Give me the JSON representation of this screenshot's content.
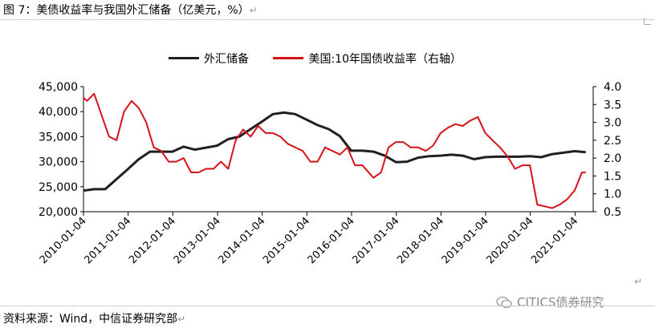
{
  "caption": "图 7：美债收益率与我国外汇储备（亿美元，%）",
  "caption_mark": "↵",
  "source": "资料来源：Wind，中信证券研究部",
  "source_mark": "↵",
  "watermark": "CITICS债券研究",
  "para_mark": "↵",
  "colors": {
    "reserve": "#231f20",
    "yield": "#d7121a"
  },
  "chart_data": {
    "type": "line",
    "x_tick_labels": [
      "2010-01-04",
      "2011-01-04",
      "2012-01-04",
      "2013-01-04",
      "2014-01-04",
      "2015-01-04",
      "2016-01-04",
      "2017-01-04",
      "2018-01-04",
      "2019-01-04",
      "2020-01-04",
      "2021-01-04"
    ],
    "ylim_left": [
      20000,
      45000
    ],
    "yticks_left": [
      "20,000",
      "25,000",
      "30,000",
      "35,000",
      "40,000",
      "45,000"
    ],
    "ylim_right": [
      0.5,
      4.0
    ],
    "yticks_right": [
      "0.5",
      "1.0",
      "1.5",
      "2.0",
      "2.5",
      "3.0",
      "3.5",
      "4.0"
    ],
    "grid": false,
    "legend_position": "top",
    "series": [
      {
        "name": "外汇储备",
        "axis": "left",
        "x": [
          "2010-01",
          "2010-04",
          "2010-07",
          "2010-10",
          "2011-01",
          "2011-04",
          "2011-07",
          "2011-10",
          "2012-01",
          "2012-04",
          "2012-07",
          "2012-10",
          "2013-01",
          "2013-04",
          "2013-07",
          "2013-10",
          "2014-01",
          "2014-04",
          "2014-07",
          "2014-10",
          "2015-01",
          "2015-04",
          "2015-07",
          "2015-10",
          "2016-01",
          "2016-04",
          "2016-07",
          "2016-10",
          "2017-01",
          "2017-04",
          "2017-07",
          "2017-10",
          "2018-01",
          "2018-04",
          "2018-07",
          "2018-10",
          "2019-01",
          "2019-04",
          "2019-07",
          "2019-10",
          "2020-01",
          "2020-04",
          "2020-07",
          "2020-10",
          "2021-01",
          "2021-04"
        ],
        "values": [
          24200,
          24500,
          24500,
          26500,
          28500,
          30500,
          32000,
          32000,
          32000,
          33000,
          32400,
          32800,
          33200,
          34500,
          35000,
          36500,
          38000,
          39500,
          39800,
          39500,
          38400,
          37300,
          36500,
          35100,
          32200,
          32200,
          32000,
          31200,
          29900,
          30000,
          30800,
          31100,
          31200,
          31400,
          31200,
          30500,
          30900,
          31000,
          31000,
          31000,
          31100,
          30900,
          31500,
          31800,
          32100,
          31900
        ]
      },
      {
        "name": "美国:10年国债收益率（右轴）",
        "axis": "right",
        "x": [
          "2010-01",
          "2010-02",
          "2010-04",
          "2010-06",
          "2010-08",
          "2010-10",
          "2010-12",
          "2011-02",
          "2011-04",
          "2011-06",
          "2011-08",
          "2011-10",
          "2011-12",
          "2012-02",
          "2012-04",
          "2012-06",
          "2012-08",
          "2012-10",
          "2012-12",
          "2013-02",
          "2013-04",
          "2013-06",
          "2013-08",
          "2013-10",
          "2013-12",
          "2014-02",
          "2014-04",
          "2014-06",
          "2014-08",
          "2014-10",
          "2014-12",
          "2015-02",
          "2015-04",
          "2015-06",
          "2015-08",
          "2015-10",
          "2015-12",
          "2016-02",
          "2016-04",
          "2016-07",
          "2016-09",
          "2016-11",
          "2017-01",
          "2017-03",
          "2017-05",
          "2017-07",
          "2017-09",
          "2017-11",
          "2018-01",
          "2018-03",
          "2018-05",
          "2018-07",
          "2018-09",
          "2018-11",
          "2019-01",
          "2019-03",
          "2019-05",
          "2019-07",
          "2019-09",
          "2019-11",
          "2020-01",
          "2020-03",
          "2020-05",
          "2020-07",
          "2020-09",
          "2020-11",
          "2021-01",
          "2021-03",
          "2021-04"
        ],
        "values": [
          3.7,
          3.6,
          3.8,
          3.2,
          2.6,
          2.5,
          3.3,
          3.6,
          3.4,
          3.0,
          2.3,
          2.2,
          1.9,
          1.9,
          2.0,
          1.6,
          1.6,
          1.7,
          1.7,
          1.9,
          1.7,
          2.5,
          2.8,
          2.6,
          2.9,
          2.7,
          2.7,
          2.6,
          2.4,
          2.3,
          2.2,
          1.9,
          1.9,
          2.3,
          2.2,
          2.1,
          2.3,
          1.8,
          1.8,
          1.45,
          1.6,
          2.3,
          2.45,
          2.45,
          2.3,
          2.3,
          2.2,
          2.35,
          2.7,
          2.85,
          2.95,
          2.9,
          3.05,
          3.15,
          2.7,
          2.5,
          2.3,
          2.05,
          1.7,
          1.8,
          1.8,
          0.7,
          0.65,
          0.6,
          0.7,
          0.85,
          1.1,
          1.6,
          1.6
        ]
      }
    ]
  }
}
